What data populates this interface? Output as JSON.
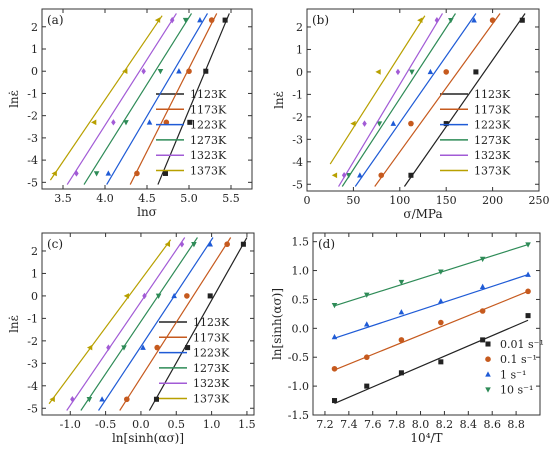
{
  "chart_data": [
    {
      "panel_label": "(a)",
      "type": "scatter",
      "xlabel": "lnσ",
      "ylabel": "lnε̇",
      "xlim": [
        3.25,
        5.75
      ],
      "ylim": [
        -5.3,
        2.8
      ],
      "xticks": [
        3.5,
        4.0,
        4.5,
        5.0,
        5.5
      ],
      "yticks": [
        -5,
        -4,
        -3,
        -2,
        -1,
        0,
        1,
        2
      ],
      "xtick_labels": [
        "3.5",
        "4.0",
        "4.5",
        "5.0",
        "5.5"
      ],
      "ytick_labels": [
        "-5",
        "-4",
        "-3",
        "-2",
        "-1",
        "0",
        "1",
        "2"
      ],
      "legend_position": "lower-right",
      "series": [
        {
          "name": "1123K",
          "color": "#222222",
          "marker": "square",
          "points": [
            [
              4.72,
              -4.6
            ],
            [
              5.01,
              -2.3
            ],
            [
              5.2,
              0
            ],
            [
              5.43,
              2.3
            ]
          ],
          "fit": [
            [
              4.63,
              -5.1
            ],
            [
              5.48,
              2.6
            ]
          ]
        },
        {
          "name": "1173K",
          "color": "#c65a1e",
          "marker": "circle",
          "points": [
            [
              4.38,
              -4.6
            ],
            [
              4.73,
              -2.3
            ],
            [
              5.0,
              0
            ],
            [
              5.27,
              2.3
            ]
          ],
          "fit": [
            [
              4.3,
              -5.1
            ],
            [
              5.33,
              2.6
            ]
          ]
        },
        {
          "name": "1223K",
          "color": "#1f5bd6",
          "marker": "triangle",
          "points": [
            [
              4.04,
              -4.6
            ],
            [
              4.53,
              -2.3
            ],
            [
              4.88,
              0
            ],
            [
              5.13,
              2.3
            ]
          ],
          "fit": [
            [
              4.02,
              -5.1
            ],
            [
              5.22,
              2.6
            ]
          ]
        },
        {
          "name": "1273K",
          "color": "#2e8b57",
          "marker": "triangle-down",
          "points": [
            [
              3.9,
              -4.6
            ],
            [
              4.25,
              -2.3
            ],
            [
              4.66,
              0
            ],
            [
              4.96,
              2.3
            ]
          ],
          "fit": [
            [
              3.75,
              -5.1
            ],
            [
              5.03,
              2.6
            ]
          ]
        },
        {
          "name": "1323K",
          "color": "#a25bd6",
          "marker": "diamond",
          "points": [
            [
              3.66,
              -4.6
            ],
            [
              4.1,
              -2.3
            ],
            [
              4.46,
              0
            ],
            [
              4.8,
              2.3
            ]
          ],
          "fit": [
            [
              3.55,
              -5.1
            ],
            [
              4.85,
              2.6
            ]
          ]
        },
        {
          "name": "1373K",
          "color": "#b8a000",
          "marker": "triangle-left",
          "points": [
            [
              3.4,
              -4.6
            ],
            [
              3.87,
              -2.3
            ],
            [
              4.24,
              0
            ],
            [
              4.63,
              2.3
            ]
          ],
          "fit": [
            [
              3.35,
              -4.9
            ],
            [
              4.68,
              2.5
            ]
          ]
        }
      ]
    },
    {
      "panel_label": "(b)",
      "type": "scatter",
      "xlabel": "σ/MPa",
      "ylabel": "lnε̇",
      "xlim": [
        0,
        250
      ],
      "ylim": [
        -5.3,
        2.8
      ],
      "xticks": [
        0,
        50,
        100,
        150,
        200,
        250
      ],
      "yticks": [
        -5,
        -4,
        -3,
        -2,
        -1,
        0,
        1,
        2
      ],
      "xtick_labels": [
        "0",
        "50",
        "100",
        "150",
        "200",
        "250"
      ],
      "ytick_labels": [
        "-5",
        "-4",
        "-3",
        "-2",
        "-1",
        "0",
        "1",
        "2"
      ],
      "legend_position": "lower-right",
      "series": [
        {
          "name": "1123K",
          "color": "#222222",
          "marker": "square",
          "points": [
            [
              112,
              -4.6
            ],
            [
              150,
              -2.3
            ],
            [
              182,
              0
            ],
            [
              232,
              2.3
            ]
          ],
          "fit": [
            [
              105,
              -5.1
            ],
            [
              235,
              2.6
            ]
          ]
        },
        {
          "name": "1173K",
          "color": "#c65a1e",
          "marker": "circle",
          "points": [
            [
              80,
              -4.6
            ],
            [
              112,
              -2.3
            ],
            [
              150,
              0
            ],
            [
              200,
              2.3
            ]
          ],
          "fit": [
            [
              73,
              -5.1
            ],
            [
              208,
              2.6
            ]
          ]
        },
        {
          "name": "1223K",
          "color": "#1f5bd6",
          "marker": "triangle",
          "points": [
            [
              57,
              -4.6
            ],
            [
              93,
              -2.3
            ],
            [
              133,
              0
            ],
            [
              180,
              2.3
            ]
          ],
          "fit": [
            [
              52,
              -5.1
            ],
            [
              182,
              2.6
            ]
          ]
        },
        {
          "name": "1273K",
          "color": "#2e8b57",
          "marker": "triangle-down",
          "points": [
            [
              45,
              -4.6
            ],
            [
              78,
              -2.3
            ],
            [
              113,
              0
            ],
            [
              155,
              2.3
            ]
          ],
          "fit": [
            [
              38,
              -5.1
            ],
            [
              160,
              2.6
            ]
          ]
        },
        {
          "name": "1323K",
          "color": "#a25bd6",
          "marker": "diamond",
          "points": [
            [
              40,
              -4.6
            ],
            [
              62,
              -2.3
            ],
            [
              98,
              0
            ],
            [
              140,
              2.3
            ]
          ],
          "fit": [
            [
              34,
              -5.1
            ],
            [
              146,
              2.6
            ]
          ]
        },
        {
          "name": "1373K",
          "color": "#b8a000",
          "marker": "triangle-left",
          "points": [
            [
              30,
              -4.6
            ],
            [
              50,
              -2.3
            ],
            [
              77,
              0
            ],
            [
              122,
              2.3
            ]
          ],
          "fit": [
            [
              25,
              -4.1
            ],
            [
              127,
              2.5
            ]
          ]
        }
      ]
    },
    {
      "panel_label": "(c)",
      "type": "scatter",
      "xlabel": "ln[sinh(ασ)]",
      "ylabel": "lnε̇",
      "xlim": [
        -1.4,
        1.6
      ],
      "ylim": [
        -5.3,
        2.8
      ],
      "xticks": [
        -1.0,
        -0.5,
        0.0,
        0.5,
        1.0,
        1.5
      ],
      "yticks": [
        -5,
        -4,
        -3,
        -2,
        -1,
        0,
        1,
        2
      ],
      "xtick_labels": [
        "-1.0",
        "-0.5",
        "0.0",
        "0.5",
        "1.0",
        "1.5"
      ],
      "ytick_labels": [
        "-5",
        "-4",
        "-3",
        "-2",
        "-1",
        "0",
        "1",
        "2"
      ],
      "legend_position": "lower-right",
      "series": [
        {
          "name": "1123K",
          "color": "#222222",
          "marker": "square",
          "points": [
            [
              0.22,
              -4.6
            ],
            [
              0.66,
              -2.3
            ],
            [
              0.98,
              0
            ],
            [
              1.45,
              2.3
            ]
          ],
          "fit": [
            [
              0.12,
              -5.1
            ],
            [
              1.5,
              2.6
            ]
          ]
        },
        {
          "name": "1173K",
          "color": "#c65a1e",
          "marker": "circle",
          "points": [
            [
              -0.2,
              -4.6
            ],
            [
              0.23,
              -2.3
            ],
            [
              0.65,
              0
            ],
            [
              1.22,
              2.3
            ]
          ],
          "fit": [
            [
              -0.3,
              -5.1
            ],
            [
              1.27,
              2.6
            ]
          ]
        },
        {
          "name": "1223K",
          "color": "#1f5bd6",
          "marker": "triangle",
          "points": [
            [
              -0.55,
              -4.6
            ],
            [
              0.03,
              -2.3
            ],
            [
              0.47,
              0
            ],
            [
              0.98,
              2.3
            ]
          ],
          "fit": [
            [
              -0.6,
              -5.1
            ],
            [
              1.02,
              2.6
            ]
          ]
        },
        {
          "name": "1273K",
          "color": "#2e8b57",
          "marker": "triangle-down",
          "points": [
            [
              -0.73,
              -4.6
            ],
            [
              -0.24,
              -2.3
            ],
            [
              0.25,
              0
            ],
            [
              0.75,
              2.3
            ]
          ],
          "fit": [
            [
              -0.85,
              -5.1
            ],
            [
              0.8,
              2.6
            ]
          ]
        },
        {
          "name": "1323K",
          "color": "#a25bd6",
          "marker": "diamond",
          "points": [
            [
              -0.97,
              -4.6
            ],
            [
              -0.46,
              -2.3
            ],
            [
              0.05,
              0
            ],
            [
              0.58,
              2.3
            ]
          ],
          "fit": [
            [
              -1.05,
              -5.1
            ],
            [
              0.62,
              2.6
            ]
          ]
        },
        {
          "name": "1373K",
          "color": "#b8a000",
          "marker": "triangle-left",
          "points": [
            [
              -1.25,
              -4.6
            ],
            [
              -0.72,
              -2.3
            ],
            [
              -0.2,
              0
            ],
            [
              0.38,
              2.3
            ]
          ],
          "fit": [
            [
              -1.3,
              -4.8
            ],
            [
              0.42,
              2.5
            ]
          ]
        }
      ]
    },
    {
      "panel_label": "(d)",
      "type": "scatter",
      "xlabel": "10⁴/T",
      "ylabel": "ln[sinh(ασ)]",
      "xlim": [
        7.1,
        9.0
      ],
      "ylim": [
        -1.5,
        1.65
      ],
      "xticks": [
        7.2,
        7.4,
        7.6,
        7.8,
        8.0,
        8.2,
        8.4,
        8.6,
        8.8
      ],
      "yticks": [
        -1.5,
        -1.0,
        -0.5,
        0.0,
        0.5,
        1.0,
        1.5
      ],
      "xtick_labels": [
        "7.2",
        "7.4",
        "7.6",
        "7.8",
        "8.0",
        "8.2",
        "8.4",
        "8.6",
        "8.8"
      ],
      "ytick_labels": [
        "-1.5",
        "-1.0",
        "-0.5",
        "0.0",
        "0.5",
        "1.0",
        "1.5"
      ],
      "legend_position": "lower-right",
      "series": [
        {
          "name": "0.01 s⁻¹",
          "color": "#222222",
          "marker": "square",
          "points": [
            [
              7.28,
              -1.25
            ],
            [
              7.55,
              -1.0
            ],
            [
              7.84,
              -0.77
            ],
            [
              8.17,
              -0.58
            ],
            [
              8.52,
              -0.2
            ],
            [
              8.9,
              0.22
            ]
          ],
          "fit": [
            [
              7.28,
              -1.3
            ],
            [
              8.9,
              0.14
            ]
          ]
        },
        {
          "name": "0.1 s⁻¹",
          "color": "#c65a1e",
          "marker": "circle",
          "points": [
            [
              7.28,
              -0.7
            ],
            [
              7.55,
              -0.5
            ],
            [
              7.84,
              -0.2
            ],
            [
              8.17,
              0.1
            ],
            [
              8.52,
              0.3
            ],
            [
              8.9,
              0.64
            ]
          ],
          "fit": [
            [
              7.28,
              -0.72
            ],
            [
              8.9,
              0.64
            ]
          ]
        },
        {
          "name": "1 s⁻¹",
          "color": "#1f5bd6",
          "marker": "triangle",
          "points": [
            [
              7.28,
              -0.15
            ],
            [
              7.55,
              0.07
            ],
            [
              7.84,
              0.28
            ],
            [
              8.17,
              0.47
            ],
            [
              8.52,
              0.72
            ],
            [
              8.9,
              0.93
            ]
          ],
          "fit": [
            [
              7.28,
              -0.17
            ],
            [
              8.9,
              0.93
            ]
          ]
        },
        {
          "name": "10 s⁻¹",
          "color": "#2e8b57",
          "marker": "triangle-down",
          "points": [
            [
              7.28,
              0.4
            ],
            [
              7.55,
              0.58
            ],
            [
              7.84,
              0.8
            ],
            [
              8.17,
              0.98
            ],
            [
              8.52,
              1.2
            ],
            [
              8.9,
              1.45
            ]
          ],
          "fit": [
            [
              7.28,
              0.39
            ],
            [
              8.9,
              1.45
            ]
          ]
        }
      ]
    }
  ]
}
